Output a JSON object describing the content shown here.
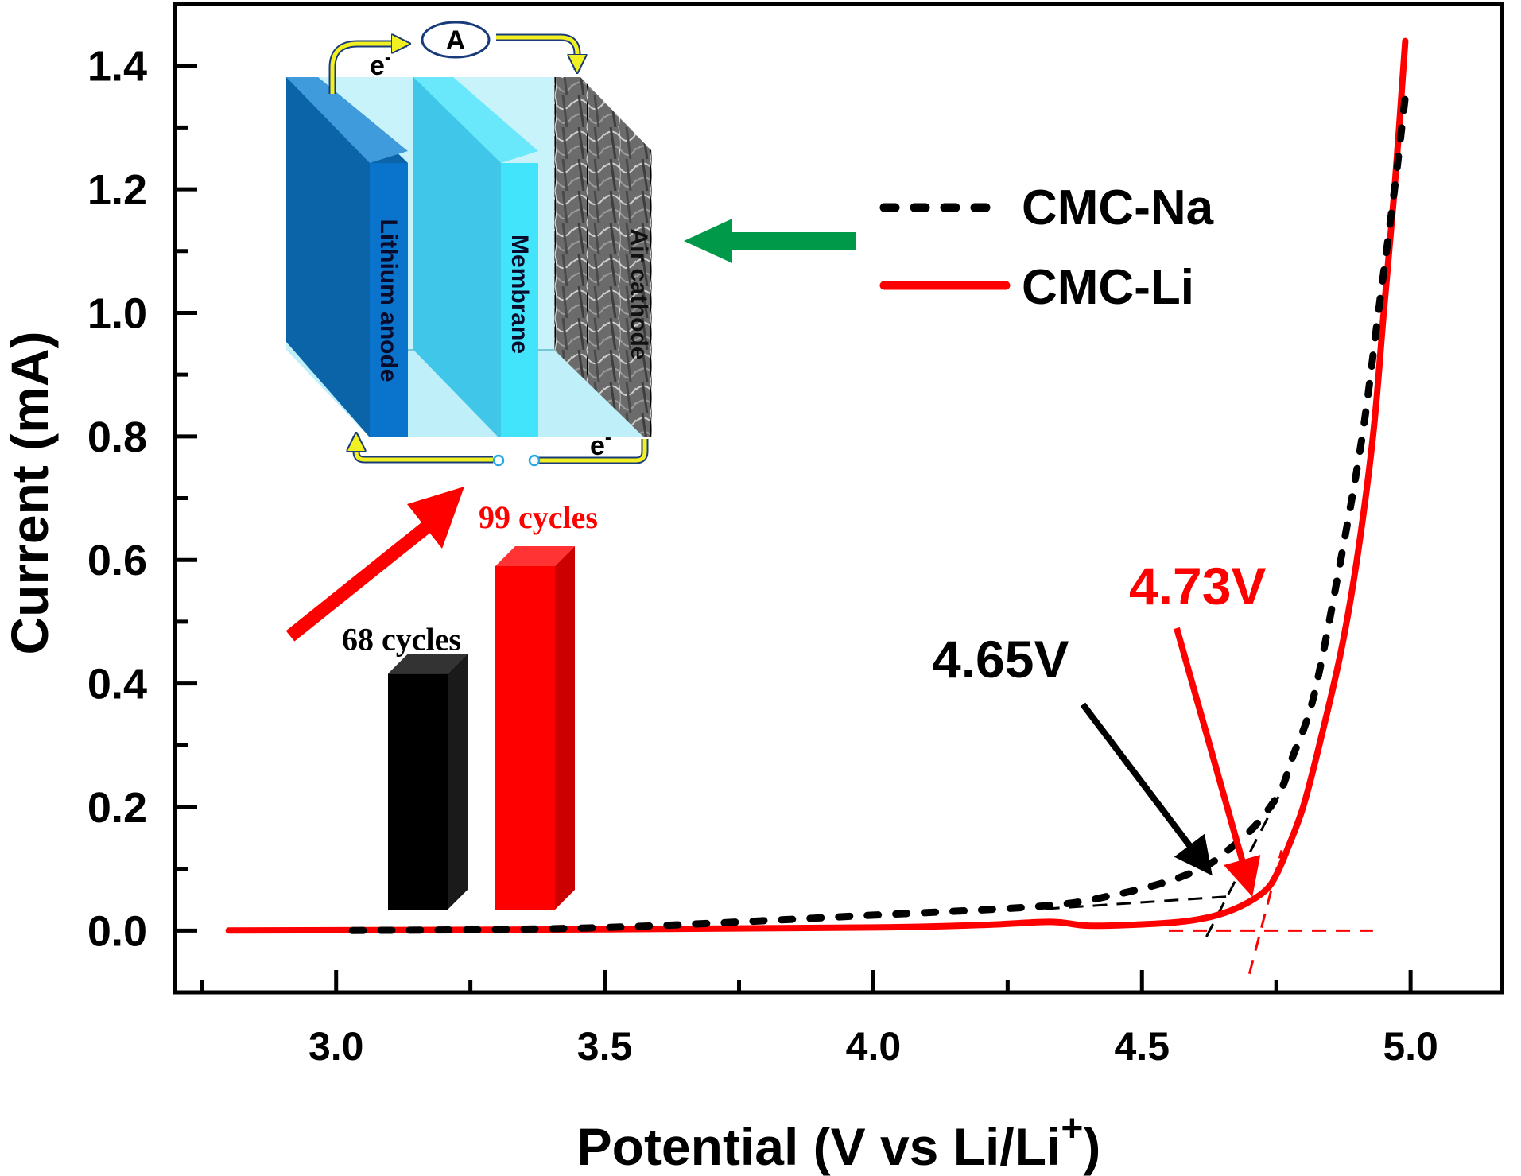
{
  "chart_data": {
    "type": "line",
    "title": "",
    "xlabel": "Potential (V vs Li/Li",
    "xlabel_superscript": "+",
    "xlabel_close": ")",
    "ylabel": "Current (mA)",
    "xlim": [
      2.7,
      5.17
    ],
    "ylim": [
      -0.1,
      1.5
    ],
    "grid": false,
    "x_ticks": [
      3.0,
      3.5,
      4.0,
      4.5,
      5.0
    ],
    "x_tick_labels": [
      "3.0",
      "3.5",
      "4.0",
      "4.5",
      "5.0"
    ],
    "x_minor_ticks": [
      2.75,
      3.25,
      3.75,
      4.25,
      4.75
    ],
    "y_ticks": [
      0.0,
      0.2,
      0.4,
      0.6,
      0.8,
      1.0,
      1.2,
      1.4
    ],
    "y_tick_labels": [
      "0.0",
      "0.2",
      "0.4",
      "0.6",
      "0.8",
      "1.0",
      "1.2",
      "1.4"
    ],
    "y_minor_ticks": [
      0.1,
      0.3,
      0.5,
      0.7,
      0.9,
      1.1,
      1.3
    ],
    "legend_position": "top-right",
    "series": [
      {
        "name": "CMC-Na",
        "color": "#000000",
        "style": "dashed",
        "x": [
          3.03,
          3.5,
          4.0,
          4.32,
          4.45,
          4.55,
          4.62,
          4.66,
          4.7,
          4.73,
          4.76,
          4.78,
          4.82,
          4.87,
          4.91,
          4.94,
          4.97,
          4.99
        ],
        "y": [
          0.0,
          0.005,
          0.025,
          0.04,
          0.058,
          0.08,
          0.105,
          0.13,
          0.16,
          0.19,
          0.23,
          0.28,
          0.38,
          0.6,
          0.8,
          1.0,
          1.2,
          1.35
        ]
      },
      {
        "name": "CMC-Li",
        "color": "#ff0000",
        "style": "solid",
        "x": [
          2.8,
          3.5,
          4.0,
          4.2,
          4.33,
          4.4,
          4.5,
          4.58,
          4.64,
          4.69,
          4.73,
          4.75,
          4.77,
          4.8,
          4.83,
          4.87,
          4.9,
          4.93,
          4.95,
          4.97,
          4.99
        ],
        "y": [
          0.0,
          0.002,
          0.005,
          0.009,
          0.014,
          0.008,
          0.01,
          0.015,
          0.025,
          0.042,
          0.065,
          0.09,
          0.13,
          0.2,
          0.3,
          0.45,
          0.6,
          0.8,
          1.0,
          1.2,
          1.44
        ]
      }
    ],
    "tangent_lines": [
      {
        "series": "CMC-Na",
        "color": "#000000",
        "x": [
          4.32,
          4.66
        ],
        "y": [
          0.035,
          0.055
        ]
      },
      {
        "series": "CMC-Na",
        "color": "#000000",
        "x": [
          4.62,
          4.78
        ],
        "y": [
          -0.01,
          0.26
        ]
      },
      {
        "series": "CMC-Li",
        "color": "#ff0000",
        "x": [
          4.55,
          4.93
        ],
        "y": [
          0.0,
          0.0
        ]
      },
      {
        "series": "CMC-Li",
        "color": "#ff0000",
        "x": [
          4.7,
          4.76
        ],
        "y": [
          -0.07,
          0.13
        ]
      }
    ],
    "annotations": [
      {
        "text": "4.65V",
        "color": "#000000",
        "x": 4.65,
        "y": 0.04
      },
      {
        "text": "4.73V",
        "color": "#ff0000",
        "x": 4.73,
        "y": 0.0
      }
    ],
    "inset_bar": {
      "categories": [
        "CMC-Na",
        "CMC-Li"
      ],
      "values": [
        68,
        99
      ],
      "labels": [
        "68 cycles",
        "99 cycles"
      ],
      "colors": [
        "#000000",
        "#ff0000"
      ],
      "unit": "cycles"
    },
    "inset_diagram": {
      "components": [
        "Lithium anode",
        "Membrane",
        "Air cathode"
      ],
      "ammeter_label": "A",
      "electron_label": "e",
      "electron_superscript": "-"
    }
  }
}
